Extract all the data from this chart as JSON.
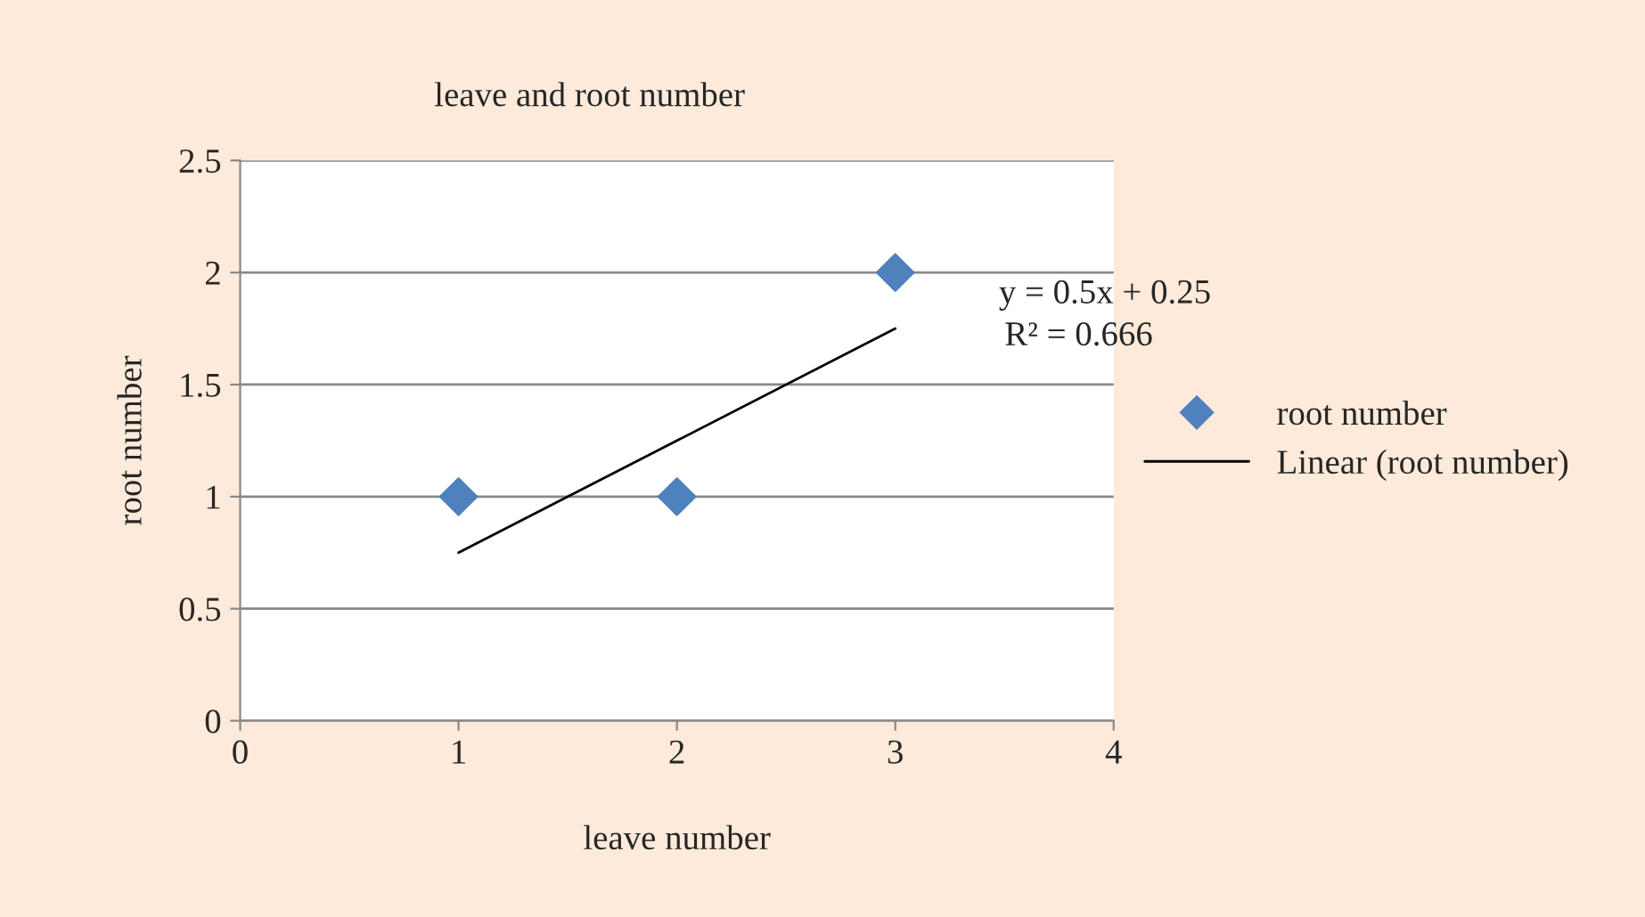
{
  "chart_data": {
    "type": "scatter",
    "title": "leave and root number",
    "xlabel": "leave number",
    "ylabel": "root number",
    "xlim": [
      0,
      4
    ],
    "xticks": [
      0,
      1,
      2,
      3,
      4
    ],
    "ylim": [
      0,
      2.5
    ],
    "yticks": [
      0,
      0.5,
      1,
      1.5,
      2,
      2.5
    ],
    "grid": "y",
    "legend": "right",
    "series": [
      {
        "name": "root number",
        "color": "#4f81bd",
        "marker": "diamond",
        "x": [
          1,
          2,
          3
        ],
        "values": [
          1,
          1,
          2
        ]
      },
      {
        "name": "Linear (root number)",
        "type": "line",
        "color": "#000000",
        "marker": "none",
        "line_style": "solid",
        "x": [
          1,
          3
        ],
        "values": [
          0.75,
          1.75
        ]
      }
    ],
    "annotations": [
      "y = 0.5x + 0.25",
      "R² = 0.666"
    ]
  }
}
